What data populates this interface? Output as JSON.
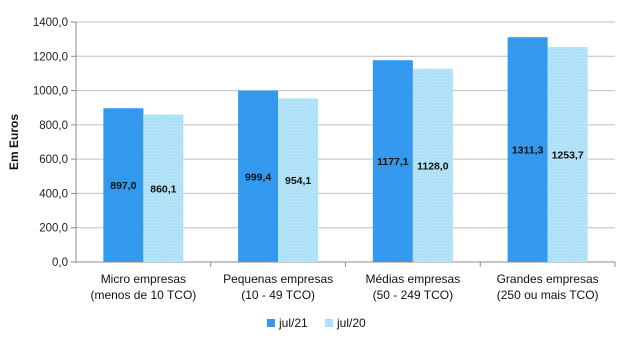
{
  "chart_data": {
    "type": "bar",
    "ylabel": "Em Euros",
    "ylim": [
      0,
      1400
    ],
    "y_ticks": [
      "0,0",
      "200,0",
      "400,0",
      "600,0",
      "800,0",
      "1000,0",
      "1200,0",
      "1400,0"
    ],
    "grid": true,
    "legend_position": "bottom",
    "categories": [
      [
        "Micro empresas",
        "(menos de 10 TCO)"
      ],
      [
        "Pequenas empresas",
        "(10 - 49 TCO)"
      ],
      [
        "Médias empresas",
        "(50 - 249 TCO)"
      ],
      [
        "Grandes empresas",
        "(250 ou mais TCO)"
      ]
    ],
    "series": [
      {
        "name": "jul/21",
        "color": "#3399ee",
        "values": [
          897.0,
          999.4,
          1177.1,
          1311.3
        ],
        "labels": [
          "897,0",
          "999,4",
          "1177,1",
          "1311,3"
        ]
      },
      {
        "name": "jul/20",
        "color": "#aee0f7",
        "values": [
          860.1,
          954.1,
          1128.0,
          1253.7
        ],
        "labels": [
          "860,1",
          "954,1",
          "1128,0",
          "1253,7"
        ]
      }
    ]
  }
}
